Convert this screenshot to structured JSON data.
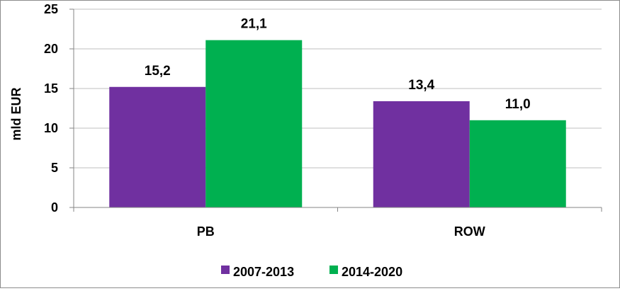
{
  "chart_data": {
    "type": "bar",
    "categories": [
      "PB",
      "ROW"
    ],
    "series": [
      {
        "name": "2007-2013",
        "color": "#7030A0",
        "values": [
          15.2,
          13.4
        ],
        "labels": [
          "15,2",
          "13,4"
        ]
      },
      {
        "name": "2014-2020",
        "color": "#00B050",
        "values": [
          21.1,
          11.0
        ],
        "labels": [
          "21,1",
          "11,0"
        ]
      }
    ],
    "title": "",
    "xlabel": "",
    "ylabel": "mld EUR",
    "ylim": [
      0,
      25
    ],
    "yticks": [
      "0",
      "5",
      "10",
      "15",
      "20",
      "25"
    ],
    "grid": true,
    "legend": "bottom"
  }
}
